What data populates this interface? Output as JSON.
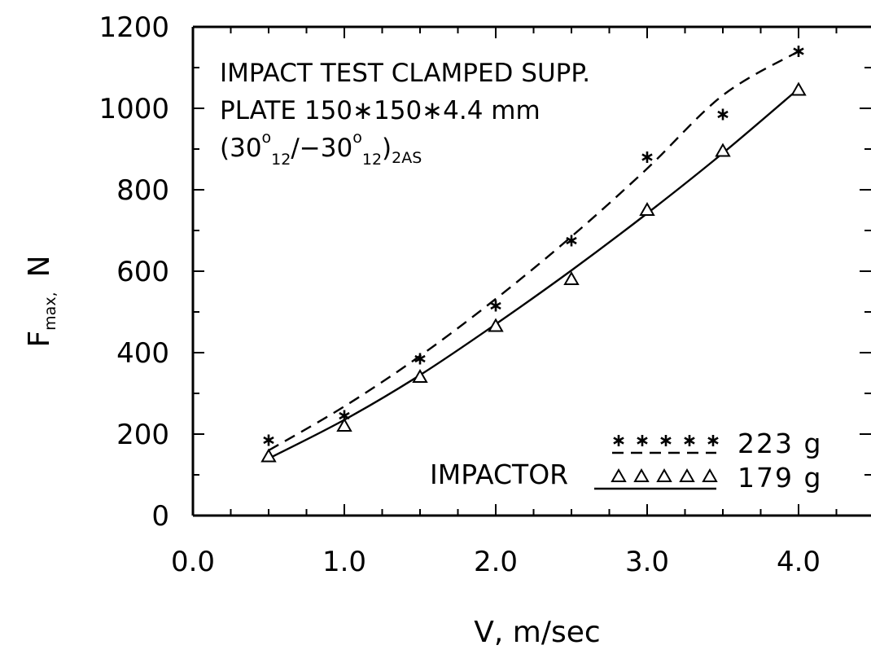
{
  "chart_data": {
    "type": "line",
    "title": "",
    "annotations": {
      "line1": "IMPACT TEST CLAMPED SUPP.",
      "line2": "PLATE 150∗150∗4.4 mm",
      "line3_open": "(30",
      "line3_sup1": "o",
      "line3_sub1": "12",
      "line3_mid": "/−30",
      "line3_sup2": "o",
      "line3_sub2": "12",
      "line3_close": ")",
      "line3_sub3": "2AS"
    },
    "xlabel": "V,  m/sec",
    "ylabel_main": "F",
    "ylabel_sub": "max,",
    "ylabel_unit": "N",
    "xlim": [
      0.0,
      4.5
    ],
    "ylim": [
      0,
      1200
    ],
    "x_ticks": [
      "0.0",
      "1.0",
      "2.0",
      "3.0",
      "4.0"
    ],
    "x_tick_values": [
      0.0,
      1.0,
      2.0,
      3.0,
      4.0
    ],
    "y_ticks": [
      "0",
      "200",
      "400",
      "600",
      "800",
      "1000",
      "1200"
    ],
    "y_tick_values": [
      0,
      200,
      400,
      600,
      800,
      1000,
      1200
    ],
    "x_minor_step": 0.25,
    "y_minor_step": 100,
    "grid": false,
    "legend": {
      "title": "IMPACTOR",
      "placement": "bottom-right",
      "entries": [
        {
          "marker": "asterisk",
          "line": "dashed",
          "label": "223  g"
        },
        {
          "marker": "triangle",
          "line": "solid",
          "label": "179  g"
        }
      ]
    },
    "series": [
      {
        "marker": "asterisk",
        "line_style": "dashed",
        "x": [
          0.5,
          1.0,
          1.5,
          2.0,
          2.5,
          3.0,
          3.5,
          4.0
        ],
        "y": [
          185,
          245,
          385,
          515,
          675,
          880,
          985,
          1140
        ],
        "fit_y": [
          160,
          268,
          392,
          532,
          685,
          852,
          1032,
          1140
        ]
      },
      {
        "marker": "triangle",
        "line_style": "solid",
        "x": [
          0.5,
          1.0,
          1.5,
          2.0,
          2.5,
          3.0,
          3.5,
          4.0
        ],
        "y": [
          145,
          220,
          340,
          465,
          580,
          750,
          895,
          1045
        ],
        "fit_y": [
          140,
          235,
          345,
          470,
          602,
          742,
          890,
          1048
        ]
      }
    ]
  }
}
